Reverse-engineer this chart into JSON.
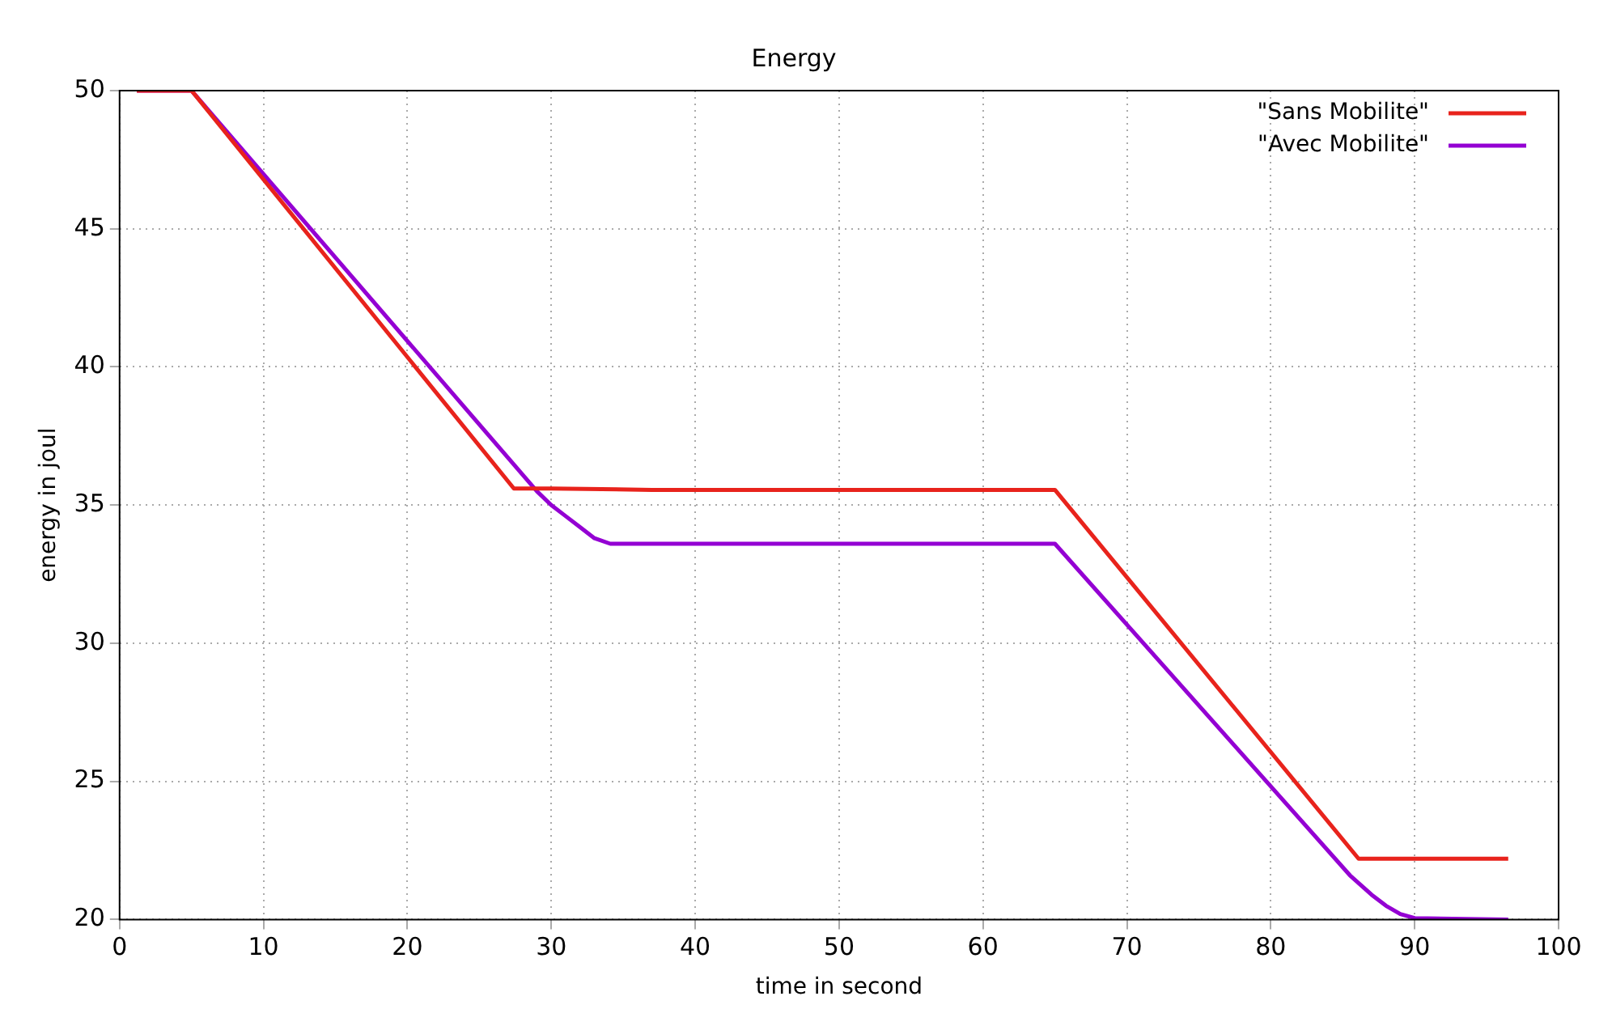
{
  "chart_data": {
    "type": "line",
    "title": "Energy",
    "xlabel": "time in second",
    "ylabel": "energy in joul",
    "xlim": [
      0,
      100
    ],
    "xticks": [
      0,
      10,
      20,
      30,
      40,
      50,
      60,
      70,
      80,
      90,
      100
    ],
    "ylim": [
      20,
      50
    ],
    "yticks": [
      20,
      25,
      30,
      35,
      40,
      45,
      50
    ],
    "grid": true,
    "legend": "top right",
    "marker": "none",
    "line_style": "solid",
    "series": [
      {
        "name": "\"Sans Mobilite\"",
        "color": "#e8231c",
        "x": [
          1.2,
          5,
          27.4,
          30,
          37,
          65,
          86.1,
          96.5
        ],
        "values": [
          50,
          50,
          35.6,
          35.6,
          35.55,
          35.55,
          22.2,
          22.2
        ]
      },
      {
        "name": "\"Avec Mobilite\"",
        "color": "#9400d3",
        "x": [
          1.2,
          5,
          29,
          30,
          31,
          32,
          33,
          34.1,
          40,
          65,
          85.5,
          87,
          88,
          89,
          90,
          96.5
        ],
        "values": [
          50,
          50,
          35.5,
          35,
          34.6,
          34.2,
          33.8,
          33.6,
          33.6,
          33.6,
          21.6,
          20.9,
          20.5,
          20.2,
          20.05,
          20
        ]
      }
    ]
  }
}
